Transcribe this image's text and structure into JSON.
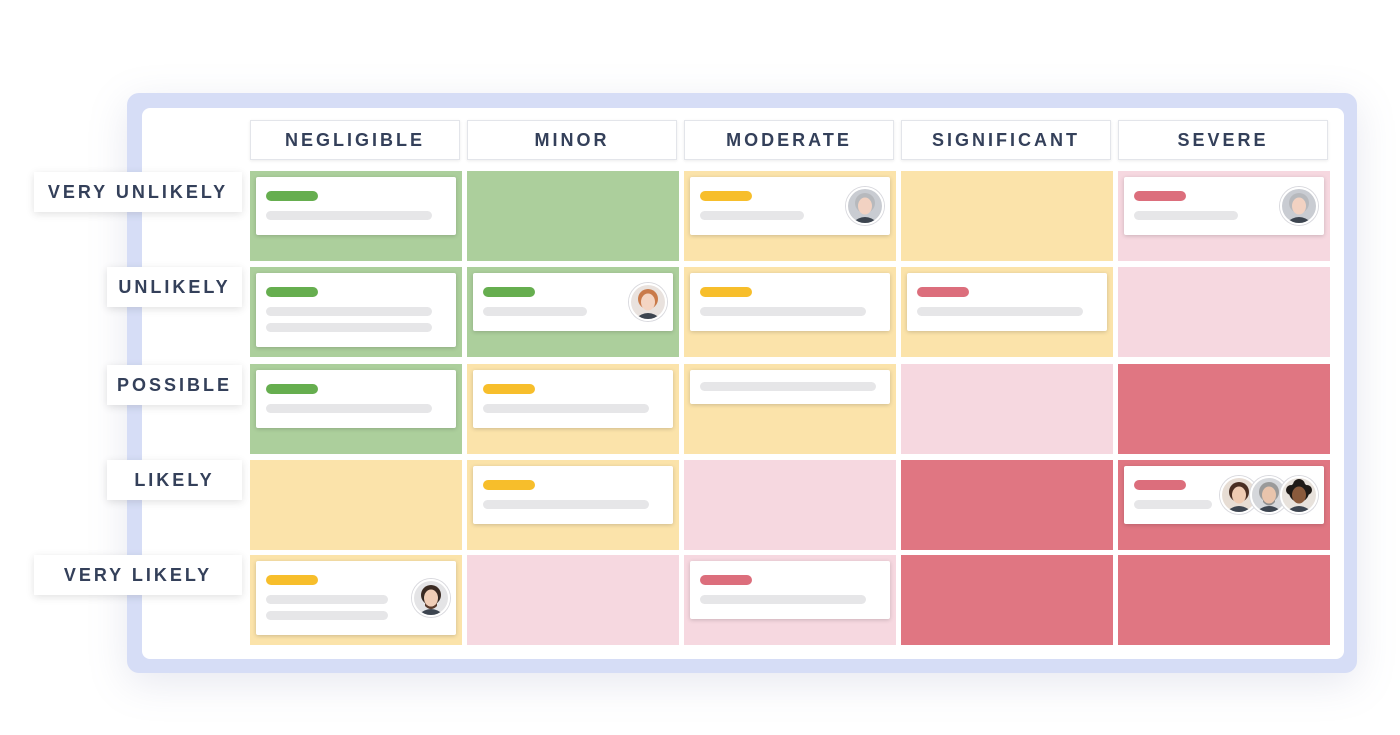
{
  "columns": [
    "NEGLIGIBLE",
    "MINOR",
    "MODERATE",
    "SIGNIFICANT",
    "SEVERE"
  ],
  "rows": [
    "VERY UNLIKELY",
    "UNLIKELY",
    "POSSIBLE",
    "LIKELY",
    "VERY LIKELY"
  ],
  "colors": {
    "green": "#accf9c",
    "yellow": "#fbe3aa",
    "pink": "#f6d8e0",
    "red": "#e07682",
    "tag_green": "#66ae4f",
    "tag_yellow": "#f7be2b",
    "tag_red": "#dc6e7c",
    "frame": "#d6ddf6"
  },
  "cell_colors": [
    [
      "green",
      "green",
      "yellow",
      "yellow",
      "pink"
    ],
    [
      "green",
      "green",
      "yellow",
      "yellow",
      "pink"
    ],
    [
      "green",
      "yellow",
      "yellow",
      "pink",
      "red"
    ],
    [
      "yellow",
      "yellow",
      "pink",
      "red",
      "red"
    ],
    [
      "yellow",
      "pink",
      "pink",
      "red",
      "red"
    ]
  ],
  "cards": [
    {
      "row": 0,
      "col": 0,
      "tag": "green",
      "lines": 1,
      "avatars": []
    },
    {
      "row": 0,
      "col": 2,
      "tag": "yellow",
      "lines": 1,
      "avatars": [
        "woman-avatar"
      ]
    },
    {
      "row": 0,
      "col": 4,
      "tag": "red",
      "lines": 1,
      "avatars": [
        "woman-avatar"
      ]
    },
    {
      "row": 1,
      "col": 0,
      "tag": "green",
      "lines": 2,
      "avatars": []
    },
    {
      "row": 1,
      "col": 1,
      "tag": "green",
      "lines": 1,
      "avatars": [
        "redhead-avatar"
      ]
    },
    {
      "row": 1,
      "col": 2,
      "tag": "yellow",
      "lines": 1,
      "avatars": []
    },
    {
      "row": 1,
      "col": 3,
      "tag": "red",
      "lines": 1,
      "avatars": []
    },
    {
      "row": 2,
      "col": 0,
      "tag": "green",
      "lines": 1,
      "avatars": []
    },
    {
      "row": 2,
      "col": 1,
      "tag": "yellow",
      "lines": 1,
      "avatars": []
    },
    {
      "row": 2,
      "col": 2,
      "tag": null,
      "lines": 1,
      "avatars": []
    },
    {
      "row": 3,
      "col": 1,
      "tag": "yellow",
      "lines": 1,
      "avatars": []
    },
    {
      "row": 3,
      "col": 4,
      "tag": "red",
      "lines": 1,
      "avatars": [
        "brunette-avatar",
        "bearded-man-avatar",
        "curly-hair-avatar"
      ]
    },
    {
      "row": 4,
      "col": 0,
      "tag": "yellow",
      "lines": 2,
      "avatars": [
        "glasses-man-avatar"
      ]
    },
    {
      "row": 4,
      "col": 2,
      "tag": "red",
      "lines": 1,
      "avatars": []
    }
  ]
}
